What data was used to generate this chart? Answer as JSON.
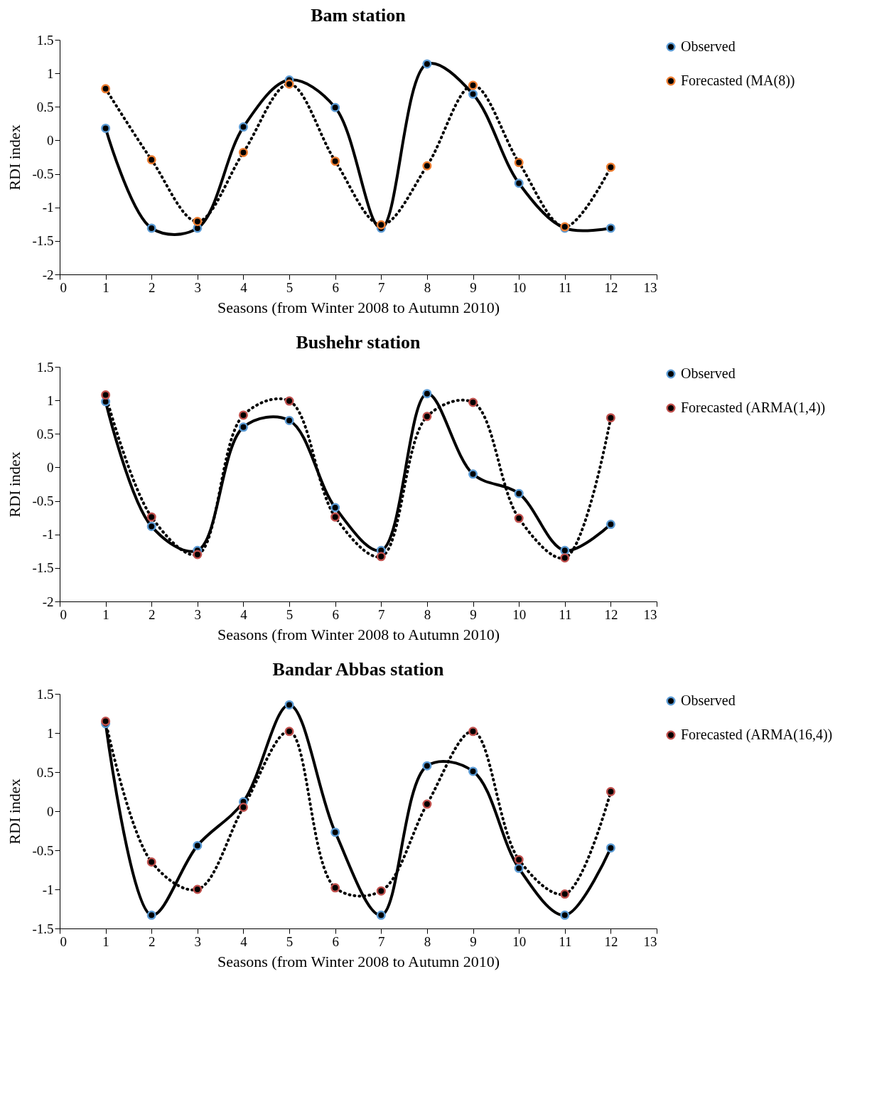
{
  "chart_data": [
    {
      "type": "line",
      "title": "Bam station",
      "xlabel": "Seasons (from Winter 2008 to Autumn 2010)",
      "ylabel": "RDI index",
      "x": [
        1,
        2,
        3,
        4,
        5,
        6,
        7,
        8,
        9,
        10,
        11,
        12
      ],
      "xlim": [
        0,
        13
      ],
      "xticks": [
        0,
        1,
        2,
        3,
        4,
        5,
        6,
        7,
        8,
        9,
        10,
        11,
        12,
        13
      ],
      "ylim": [
        -2,
        1.5
      ],
      "yticks": [
        -2,
        -1.5,
        -1,
        -0.5,
        0,
        0.5,
        1,
        1.5
      ],
      "grid": false,
      "legend": "right",
      "marker": "circle",
      "series": [
        {
          "name": "Observed",
          "color": "#5b9bd5",
          "line_style": "solid",
          "values": [
            0.18,
            -1.31,
            -1.31,
            0.2,
            0.9,
            0.49,
            -1.31,
            1.14,
            0.69,
            -0.64,
            -1.31,
            -1.31
          ]
        },
        {
          "name": "Forecasted (MA(8))",
          "color": "#ed7d31",
          "line_style": "dotted",
          "values": [
            0.77,
            -0.29,
            -1.21,
            -0.18,
            0.84,
            -0.31,
            -1.26,
            -0.38,
            0.82,
            -0.33,
            -1.29,
            -0.4
          ]
        }
      ]
    },
    {
      "type": "line",
      "title": "Bushehr station",
      "xlabel": "Seasons (from Winter 2008 to Autumn 2010)",
      "ylabel": "RDI index",
      "x": [
        1,
        2,
        3,
        4,
        5,
        6,
        7,
        8,
        9,
        10,
        11,
        12
      ],
      "xlim": [
        0,
        13
      ],
      "xticks": [
        0,
        1,
        2,
        3,
        4,
        5,
        6,
        7,
        8,
        9,
        10,
        11,
        12,
        13
      ],
      "ylim": [
        -2,
        1.5
      ],
      "yticks": [
        -2,
        -1.5,
        -1,
        -0.5,
        0,
        0.5,
        1,
        1.5
      ],
      "grid": false,
      "legend": "right",
      "marker": "circle",
      "series": [
        {
          "name": "Observed",
          "color": "#5b9bd5",
          "line_style": "solid",
          "values": [
            0.98,
            -0.88,
            -1.24,
            0.6,
            0.7,
            -0.6,
            -1.24,
            1.1,
            -0.1,
            -0.39,
            -1.24,
            -0.85
          ]
        },
        {
          "name": "Forecasted (ARMA(1,4))",
          "color": "#c0504d",
          "line_style": "dotted",
          "values": [
            1.08,
            -0.74,
            -1.3,
            0.78,
            0.99,
            -0.74,
            -1.33,
            0.76,
            0.97,
            -0.76,
            -1.35,
            0.74
          ]
        }
      ]
    },
    {
      "type": "line",
      "title": "Bandar Abbas station",
      "xlabel": "Seasons (from Winter 2008 to Autumn 2010)",
      "ylabel": "RDI index",
      "x": [
        1,
        2,
        3,
        4,
        5,
        6,
        7,
        8,
        9,
        10,
        11,
        12
      ],
      "xlim": [
        0,
        13
      ],
      "xticks": [
        0,
        1,
        2,
        3,
        4,
        5,
        6,
        7,
        8,
        9,
        10,
        11,
        12,
        13
      ],
      "ylim": [
        -1.5,
        1.5
      ],
      "yticks": [
        -1.5,
        -1,
        -0.5,
        0,
        0.5,
        1,
        1.5
      ],
      "grid": false,
      "legend": "right",
      "marker": "circle",
      "series": [
        {
          "name": "Observed",
          "color": "#5b9bd5",
          "line_style": "solid",
          "values": [
            1.12,
            -1.33,
            -0.44,
            0.12,
            1.36,
            -0.27,
            -1.33,
            0.58,
            0.51,
            -0.73,
            -1.33,
            -0.47
          ]
        },
        {
          "name": "Forecasted (ARMA(16,4))",
          "color": "#c0504d",
          "line_style": "dotted",
          "values": [
            1.15,
            -0.65,
            -1.0,
            0.05,
            1.02,
            -0.98,
            -1.02,
            0.09,
            1.02,
            -0.62,
            -1.06,
            0.25
          ]
        }
      ]
    }
  ]
}
